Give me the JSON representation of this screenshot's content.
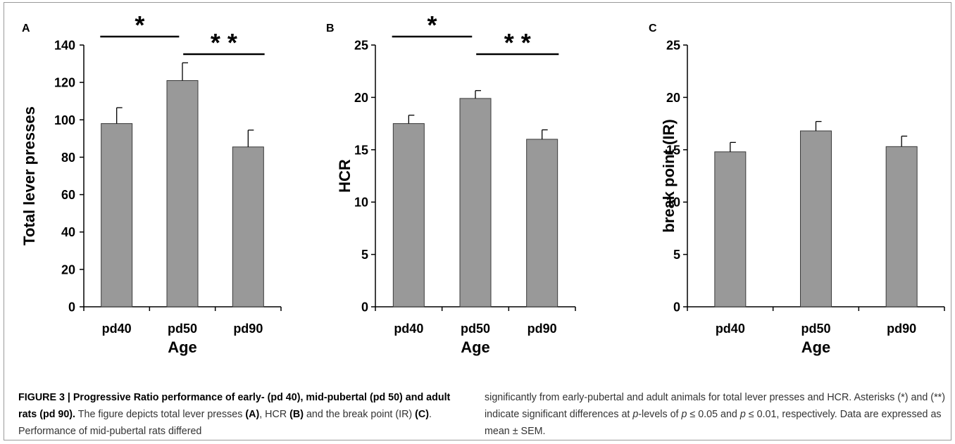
{
  "chart_data": [
    {
      "type": "bar",
      "panel": "A",
      "ylabel": "Total lever presses",
      "xlabel": "Age",
      "categories": [
        "pd40",
        "pd50",
        "pd90"
      ],
      "values": [
        98,
        121,
        85.5
      ],
      "errors": [
        8.5,
        9.5,
        9
      ],
      "ylim": [
        0,
        140
      ],
      "yticks": [
        0,
        20,
        40,
        60,
        80,
        100,
        120,
        140
      ],
      "significance": [
        {
          "from": 0,
          "to": 1,
          "label": "*"
        },
        {
          "from": 1,
          "to": 2,
          "label": "* *"
        }
      ]
    },
    {
      "type": "bar",
      "panel": "B",
      "ylabel": "HCR",
      "xlabel": "Age",
      "categories": [
        "pd40",
        "pd50",
        "pd90"
      ],
      "values": [
        17.5,
        19.9,
        16
      ],
      "errors": [
        0.8,
        0.75,
        0.9
      ],
      "ylim": [
        0,
        25
      ],
      "yticks": [
        0,
        5,
        10,
        15,
        20,
        25
      ],
      "significance": [
        {
          "from": 0,
          "to": 1,
          "label": "*"
        },
        {
          "from": 1,
          "to": 2,
          "label": "* *"
        }
      ]
    },
    {
      "type": "bar",
      "panel": "C",
      "ylabel": "break point (IR)",
      "xlabel": "Age",
      "categories": [
        "pd40",
        "pd50",
        "pd90"
      ],
      "values": [
        14.8,
        16.8,
        15.3
      ],
      "errors": [
        0.9,
        0.9,
        1.0
      ],
      "ylim": [
        0,
        25
      ],
      "yticks": [
        0,
        5,
        10,
        15,
        20,
        25
      ],
      "significance": []
    }
  ],
  "colors": {
    "bar": "#999999",
    "bar_edge": "#3a3a3a",
    "text": "#000000",
    "caption": "#333333"
  },
  "caption": {
    "left_html": "<b>FIGURE 3 | Progressive Ratio performance of early- (pd 40), mid-pubertal (pd 50) and adult rats (pd 90).</b> The figure depicts total lever presses <b>(A)</b>, HCR <b>(B)</b> and the break point (IR) <b>(C)</b>. Performance of mid-pubertal rats differed",
    "right_html": "significantly from early-pubertal and adult animals for total lever presses and HCR. Asterisks (*) and (**) indicate significant differences at <i>p</i>-levels of <i>p</i> ≤ 0.05 and <i>p</i> ≤ 0.01, respectively. Data are expressed as mean ± SEM."
  }
}
